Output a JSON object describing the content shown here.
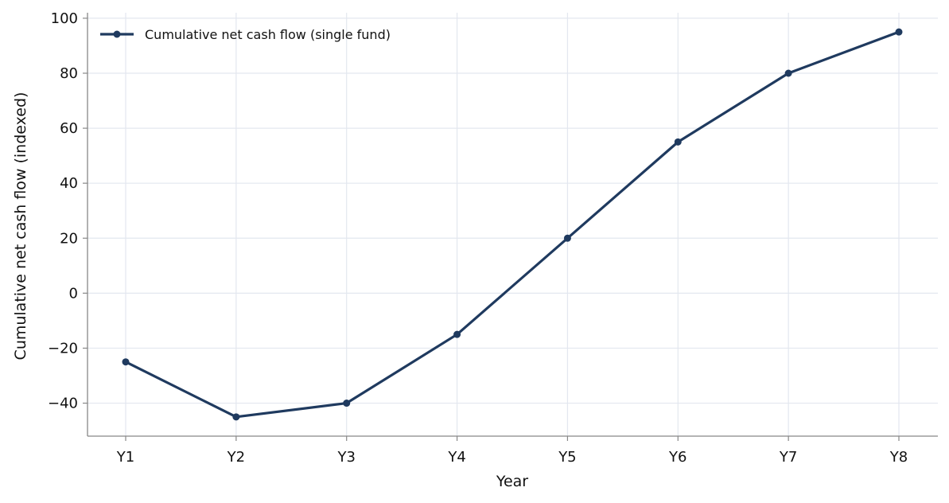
{
  "chart_data": {
    "type": "line",
    "title": "",
    "xlabel": "Year",
    "ylabel": "Cumulative net cash flow (indexed)",
    "categories": [
      "Y1",
      "Y2",
      "Y3",
      "Y4",
      "Y5",
      "Y6",
      "Y7",
      "Y8"
    ],
    "series": [
      {
        "name": "Cumulative net cash flow (single fund)",
        "values": [
          -25,
          -45,
          -40,
          -15,
          20,
          55,
          80,
          95
        ],
        "color": "#1f3a5f"
      }
    ],
    "ylim": [
      -52,
      102
    ],
    "yticks": [
      -40,
      -20,
      0,
      20,
      40,
      60,
      80,
      100
    ],
    "ytick_labels": [
      "−40",
      "−20",
      "0",
      "20",
      "40",
      "60",
      "80",
      "100"
    ],
    "grid": true,
    "legend_position": "top-left",
    "colors": {
      "grid": "#e3e7ef",
      "axis": "#888888",
      "line": "#1f3a5f"
    }
  }
}
